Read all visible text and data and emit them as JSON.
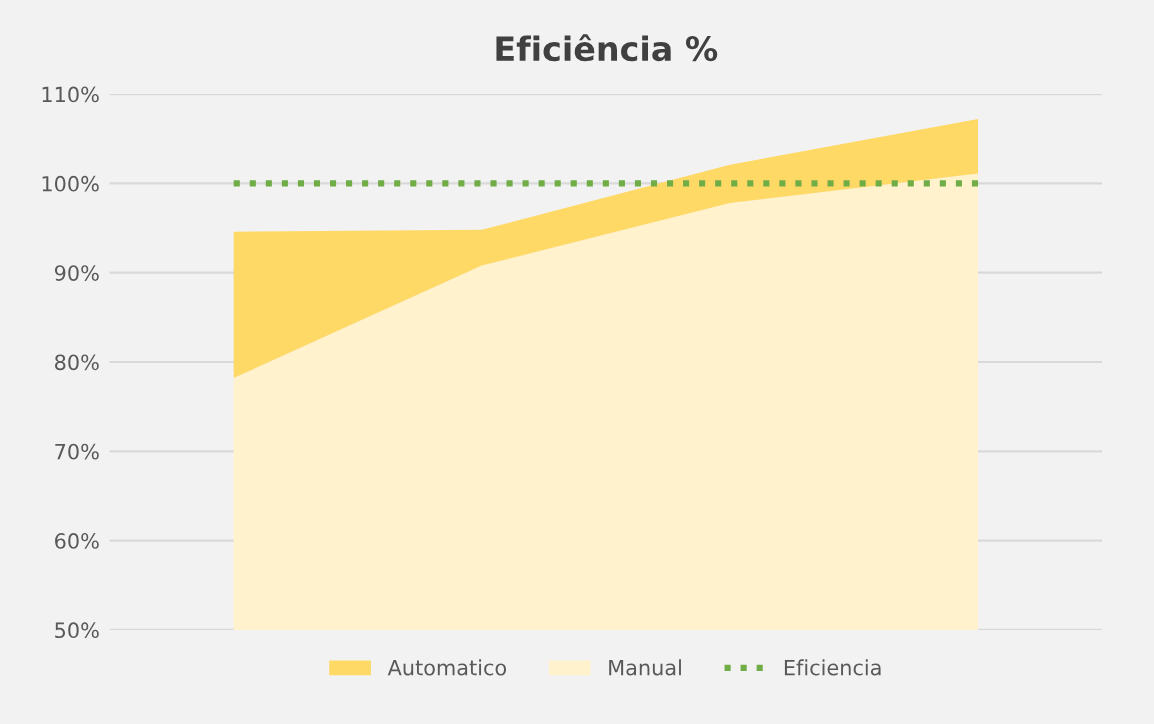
{
  "chart_data": {
    "type": "area",
    "title": "Eficiência %",
    "categories": [
      null,
      null,
      null,
      null
    ],
    "series": [
      {
        "name": "Automatico",
        "color": "#ffd966",
        "values": [
          94.6,
          94.8,
          102.1,
          107.2
        ]
      },
      {
        "name": "Manual",
        "color": "#fff2cc",
        "values": [
          78.2,
          90.8,
          97.8,
          101.1
        ]
      },
      {
        "name": "Eficiencia",
        "type": "line",
        "color": "#70ad47",
        "line_style": "dotted",
        "values": [
          100,
          100,
          100,
          100
        ]
      }
    ],
    "ylim": [
      50,
      110
    ],
    "yticks": [
      {
        "value": 50,
        "label": "50%"
      },
      {
        "value": 60,
        "label": "60%"
      },
      {
        "value": 70,
        "label": "70%"
      },
      {
        "value": 80,
        "label": "80%"
      },
      {
        "value": 90,
        "label": "90%"
      },
      {
        "value": 100,
        "label": "100%"
      },
      {
        "value": 110,
        "label": "110%"
      }
    ],
    "grid": "y",
    "legend": "bottom"
  }
}
